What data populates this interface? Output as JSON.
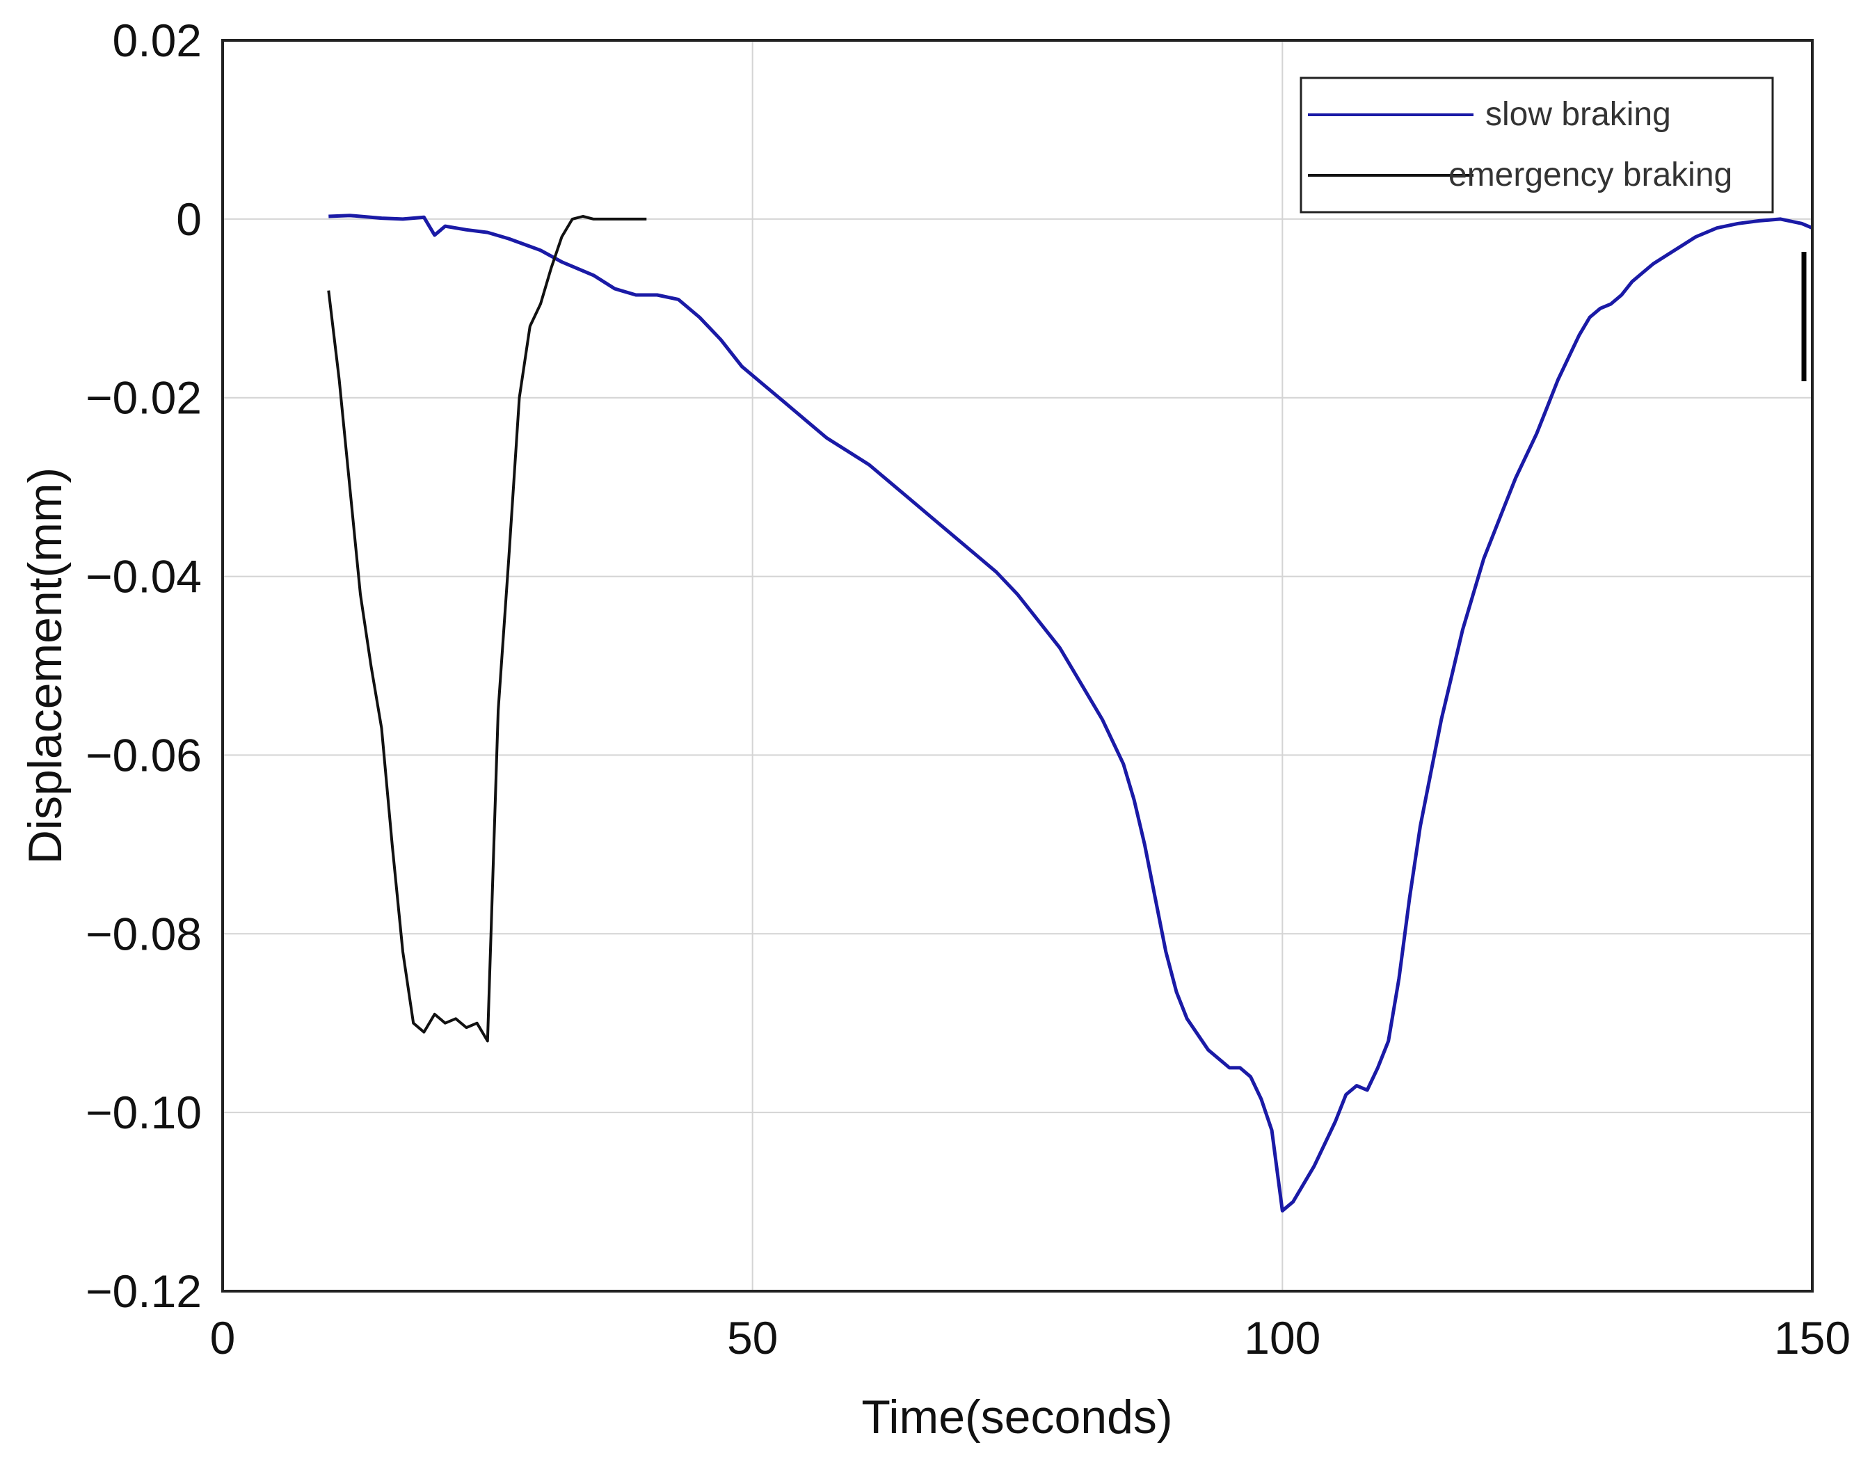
{
  "chart_data": {
    "type": "line",
    "xlabel": "Time(seconds)",
    "ylabel": "Displacement(mm)",
    "xlim": [
      0,
      150
    ],
    "ylim": [
      -0.12,
      0.02
    ],
    "xticks": [
      "0",
      "50",
      "100",
      "150"
    ],
    "yticks": [
      "0.02",
      "0",
      "−0.02",
      "−0.04",
      "−0.06",
      "−0.08",
      "−0.10",
      "−0.12"
    ],
    "grid": true,
    "legend_position": "top-right",
    "series": [
      {
        "name": "slow braking",
        "color": "#1a1aa6",
        "x": [
          10,
          12,
          15,
          17,
          19,
          20,
          21,
          23,
          25,
          27,
          30,
          32,
          35,
          37,
          39,
          41,
          43,
          45,
          47,
          49,
          51,
          53,
          55,
          57,
          59,
          61,
          63,
          65,
          67,
          69,
          71,
          73,
          75,
          77,
          79,
          81,
          83,
          85,
          86,
          87,
          88,
          89,
          90,
          91,
          93,
          95,
          96,
          97,
          98,
          99,
          100,
          101,
          103,
          105,
          106,
          107,
          108,
          109,
          110,
          111,
          112,
          113,
          114,
          115,
          116,
          117,
          118,
          119,
          120,
          121,
          122,
          123,
          124,
          125,
          126,
          127,
          128,
          129,
          130,
          131,
          132,
          133,
          134,
          135,
          137,
          139,
          141,
          143,
          145,
          147,
          149,
          150
        ],
        "y": [
          0.0003,
          0.0004,
          0.0001,
          0.0,
          0.0002,
          -0.0018,
          -0.0008,
          -0.0012,
          -0.0015,
          -0.0022,
          -0.0035,
          -0.0048,
          -0.0063,
          -0.0078,
          -0.0085,
          -0.0085,
          -0.009,
          -0.011,
          -0.0135,
          -0.0165,
          -0.0185,
          -0.0205,
          -0.0225,
          -0.0245,
          -0.026,
          -0.0275,
          -0.0295,
          -0.0315,
          -0.0335,
          -0.0355,
          -0.0375,
          -0.0395,
          -0.042,
          -0.045,
          -0.048,
          -0.052,
          -0.056,
          -0.061,
          -0.065,
          -0.07,
          -0.076,
          -0.082,
          -0.0865,
          -0.0895,
          -0.093,
          -0.095,
          -0.095,
          -0.096,
          -0.0985,
          -0.102,
          -0.111,
          -0.11,
          -0.106,
          -0.101,
          -0.098,
          -0.097,
          -0.0975,
          -0.095,
          -0.092,
          -0.085,
          -0.076,
          -0.068,
          -0.062,
          -0.056,
          -0.051,
          -0.046,
          -0.042,
          -0.038,
          -0.035,
          -0.032,
          -0.029,
          -0.0265,
          -0.024,
          -0.021,
          -0.018,
          -0.0155,
          -0.013,
          -0.011,
          -0.01,
          -0.0095,
          -0.0085,
          -0.007,
          -0.006,
          -0.005,
          -0.0035,
          -0.002,
          -0.001,
          -0.0005,
          -0.0002,
          0.0,
          -0.0005,
          -0.001
        ]
      },
      {
        "name": "emergency braking",
        "color": "#111111",
        "x": [
          10,
          11,
          12,
          13,
          14,
          15,
          16,
          17,
          18,
          19,
          20,
          21,
          22,
          23,
          24,
          25,
          26,
          27,
          28,
          29,
          30,
          31,
          32,
          33,
          34,
          35,
          36,
          37,
          38,
          39,
          40
        ],
        "y": [
          -0.008,
          -0.018,
          -0.03,
          -0.042,
          -0.05,
          -0.057,
          -0.07,
          -0.082,
          -0.09,
          -0.091,
          -0.089,
          -0.09,
          -0.0895,
          -0.0905,
          -0.09,
          -0.092,
          -0.055,
          -0.038,
          -0.02,
          -0.012,
          -0.0095,
          -0.0055,
          -0.002,
          0.0,
          0.0003,
          0.0,
          0.0,
          0.0,
          0.0,
          0.0,
          0.0
        ]
      }
    ]
  }
}
